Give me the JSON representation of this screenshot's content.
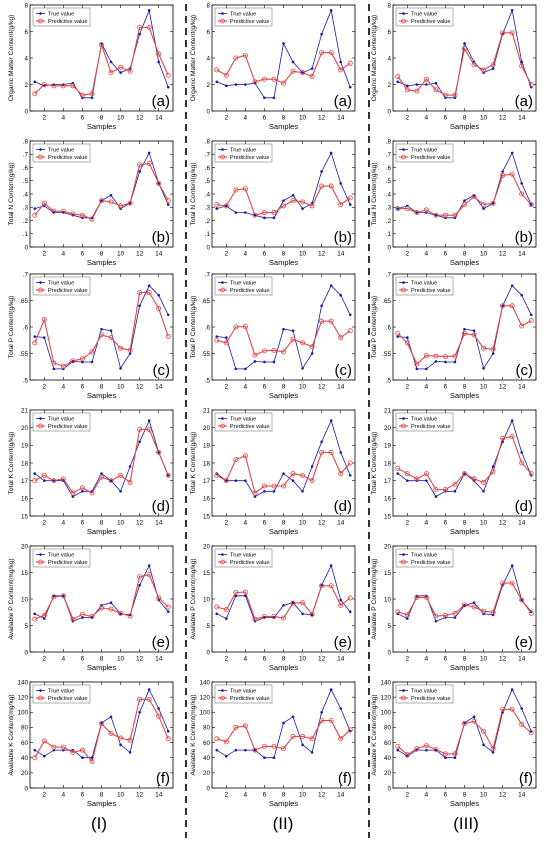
{
  "legend": {
    "true_label": "True value",
    "pred_label": "Predictive value"
  },
  "xlabel": "Samples",
  "series_colors": {
    "true": "#1a1aa8",
    "pred": "#e04848"
  },
  "columns": [
    "(I)",
    "(II)",
    "(III)"
  ],
  "rows": [
    {
      "letter": "(a)",
      "ylabel": "Organic Matter Content(g/kg)",
      "ylim": [
        0,
        8
      ],
      "ticks": [
        0,
        2,
        4,
        6,
        8
      ]
    },
    {
      "letter": "(b)",
      "ylabel": "Total N Content(g/kg)",
      "ylim": [
        0,
        0.8
      ],
      "ticks": [
        0,
        0.1,
        0.2,
        0.3,
        0.4,
        0.5,
        0.6,
        0.7,
        0.8
      ]
    },
    {
      "letter": "(c)",
      "ylabel": "Total P Content(g/kg)",
      "ylim": [
        0.5,
        0.7
      ],
      "ticks": [
        0.5,
        0.55,
        0.6,
        0.65,
        0.7
      ]
    },
    {
      "letter": "(d)",
      "ylabel": "Total K Content(g/kg)",
      "ylim": [
        15,
        21
      ],
      "ticks": [
        15,
        16,
        17,
        18,
        19,
        20,
        21
      ]
    },
    {
      "letter": "(e)",
      "ylabel": "Available P Content(mg/kg)",
      "ylim": [
        0,
        20
      ],
      "ticks": [
        0,
        5,
        10,
        15,
        20
      ]
    },
    {
      "letter": "(f)",
      "ylabel": "Available K Content(mg/kg)",
      "ylim": [
        0,
        140
      ],
      "ticks": [
        0,
        20,
        40,
        60,
        80,
        100,
        120,
        140
      ]
    }
  ],
  "chart_data": {
    "type": "line",
    "x": [
      1,
      2,
      3,
      4,
      5,
      6,
      7,
      8,
      9,
      10,
      11,
      12,
      13,
      14,
      15
    ],
    "x_ticks": [
      2,
      4,
      6,
      8,
      10,
      12,
      14
    ],
    "xlim": [
      0.5,
      15.5
    ],
    "true_values": {
      "a": [
        2.2,
        1.9,
        2.0,
        2.0,
        2.1,
        1.0,
        1.0,
        5.1,
        3.7,
        2.9,
        3.2,
        5.8,
        7.6,
        3.7,
        1.8
      ],
      "b": [
        0.29,
        0.31,
        0.26,
        0.26,
        0.24,
        0.22,
        0.22,
        0.35,
        0.39,
        0.29,
        0.33,
        0.57,
        0.71,
        0.48,
        0.32
      ],
      "c": [
        0.582,
        0.58,
        0.521,
        0.521,
        0.535,
        0.534,
        0.534,
        0.596,
        0.593,
        0.522,
        0.55,
        0.64,
        0.678,
        0.66,
        0.623
      ],
      "d": [
        17.4,
        17.0,
        17.0,
        17.0,
        16.1,
        16.4,
        16.4,
        17.4,
        17.0,
        16.4,
        17.8,
        19.2,
        20.4,
        18.6,
        17.3
      ],
      "e": [
        7.2,
        6.3,
        10.6,
        10.6,
        5.8,
        6.5,
        6.5,
        8.8,
        9.3,
        7.2,
        7.0,
        12.6,
        16.3,
        9.8,
        7.6
      ],
      "f": [
        50,
        42,
        50,
        50,
        50,
        40,
        40,
        86,
        94,
        57,
        47,
        100,
        130,
        105,
        75
      ]
    },
    "pred_values": {
      "I": {
        "a": [
          1.3,
          2.0,
          1.9,
          1.9,
          1.9,
          1.2,
          1.3,
          5.0,
          2.9,
          3.3,
          3.0,
          6.3,
          6.3,
          4.3,
          2.7
        ],
        "b": [
          0.24,
          0.33,
          0.27,
          0.27,
          0.25,
          0.24,
          0.21,
          0.35,
          0.34,
          0.31,
          0.33,
          0.62,
          0.63,
          0.48,
          0.35
        ],
        "c": [
          0.57,
          0.614,
          0.532,
          0.526,
          0.536,
          0.54,
          0.553,
          0.585,
          0.58,
          0.56,
          0.556,
          0.665,
          0.665,
          0.635,
          0.582
        ],
        "d": [
          17.0,
          17.3,
          17.0,
          17.1,
          16.3,
          16.6,
          16.3,
          17.2,
          17.0,
          17.3,
          16.9,
          19.9,
          19.9,
          18.6,
          17.3
        ],
        "e": [
          6.2,
          6.9,
          10.4,
          10.6,
          6.2,
          7.1,
          6.7,
          8.3,
          8.1,
          7.3,
          6.8,
          14.2,
          14.6,
          10.2,
          8.5
        ],
        "f": [
          40,
          62,
          54,
          54,
          47,
          50,
          35,
          85,
          72,
          66,
          63,
          117,
          117,
          95,
          65
        ]
      },
      "II": {
        "a": [
          3.1,
          2.7,
          4.0,
          4.2,
          2.2,
          2.4,
          2.4,
          2.1,
          3.0,
          2.9,
          2.6,
          4.4,
          4.4,
          3.1,
          3.6
        ],
        "b": [
          0.32,
          0.31,
          0.43,
          0.44,
          0.24,
          0.26,
          0.26,
          0.31,
          0.35,
          0.34,
          0.31,
          0.46,
          0.46,
          0.32,
          0.37
        ],
        "c": [
          0.575,
          0.57,
          0.6,
          0.601,
          0.547,
          0.555,
          0.556,
          0.553,
          0.577,
          0.57,
          0.563,
          0.611,
          0.611,
          0.58,
          0.593
        ],
        "d": [
          17.3,
          17.0,
          18.2,
          18.4,
          16.3,
          16.7,
          16.7,
          16.7,
          17.4,
          17.3,
          17.0,
          18.6,
          18.6,
          17.4,
          18.0
        ],
        "e": [
          8.5,
          8.0,
          11.2,
          11.3,
          6.2,
          6.7,
          6.7,
          6.4,
          9.2,
          9.3,
          7.1,
          12.5,
          12.5,
          8.8,
          10.2
        ],
        "f": [
          65,
          61,
          80,
          82,
          50,
          55,
          55,
          52,
          68,
          68,
          65,
          89,
          89,
          65,
          77
        ]
      },
      "III": {
        "a": [
          2.6,
          1.6,
          1.5,
          2.4,
          1.6,
          1.2,
          1.2,
          4.7,
          3.5,
          3.1,
          3.5,
          5.9,
          5.9,
          3.4,
          2.0
        ],
        "b": [
          0.29,
          0.29,
          0.26,
          0.28,
          0.24,
          0.24,
          0.24,
          0.32,
          0.38,
          0.32,
          0.33,
          0.54,
          0.55,
          0.4,
          0.32
        ],
        "c": [
          0.588,
          0.57,
          0.53,
          0.546,
          0.545,
          0.544,
          0.545,
          0.588,
          0.585,
          0.56,
          0.558,
          0.64,
          0.64,
          0.602,
          0.612
        ],
        "d": [
          17.7,
          17.4,
          17.1,
          17.4,
          16.5,
          16.5,
          16.8,
          17.4,
          17.1,
          16.9,
          17.5,
          19.4,
          19.5,
          18.0,
          17.4
        ],
        "e": [
          7.6,
          7.0,
          10.3,
          10.3,
          6.8,
          6.9,
          7.3,
          8.9,
          8.5,
          7.7,
          7.5,
          13.0,
          13.0,
          9.8,
          7.3
        ],
        "f": [
          55,
          44,
          52,
          56,
          51,
          45,
          45,
          85,
          88,
          75,
          52,
          104,
          104,
          84,
          73
        ]
      }
    }
  }
}
